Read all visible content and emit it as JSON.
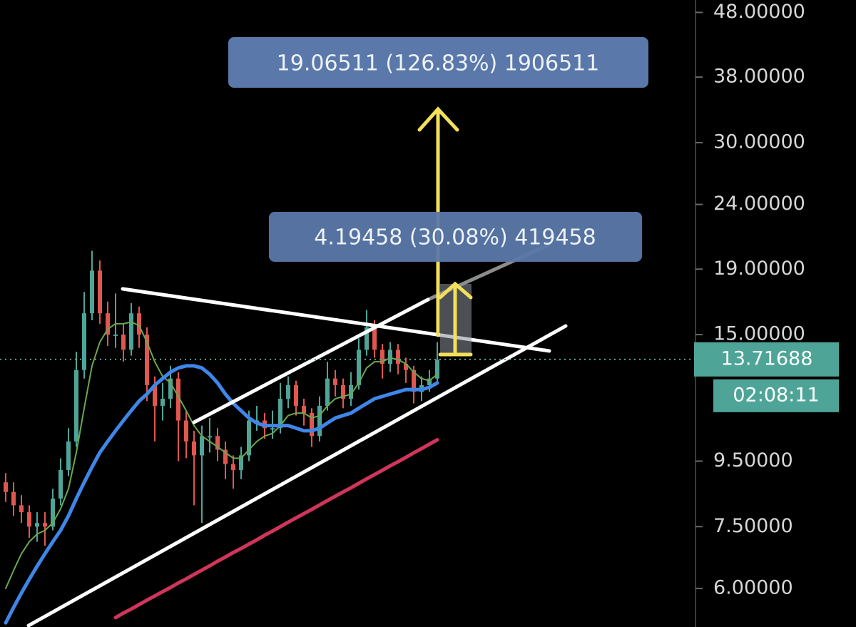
{
  "chart_data": {
    "type": "candlestick",
    "log_scale": true,
    "ylim": [
      5.22,
      50.2
    ],
    "yticks": [
      {
        "value": 6,
        "label": "6.00000"
      },
      {
        "value": 7.5,
        "label": "7.50000"
      },
      {
        "value": 9.5,
        "label": "9.50000"
      },
      {
        "value": 15,
        "label": "15.00000"
      },
      {
        "value": 19,
        "label": "19.00000"
      },
      {
        "value": 24,
        "label": "24.00000"
      },
      {
        "value": 30,
        "label": "30.00000"
      },
      {
        "value": 38,
        "label": "38.00000"
      },
      {
        "value": 48,
        "label": "48.00000"
      }
    ],
    "up_color": "#4ea597",
    "down_color": "#e0574f",
    "open": [
      8.8,
      8.5,
      8.1,
      7.9,
      7.5,
      7.6,
      7.5,
      8.3,
      9.2,
      10.2,
      13.2,
      16.2,
      18.9,
      16.2,
      15.0,
      15.0,
      14.2,
      16.2,
      15.0,
      12.5,
      11.6,
      11.9,
      12.8,
      11.0,
      10.2,
      9.7,
      10.4,
      10.4,
      9.9,
      9.4,
      9.2,
      9.7,
      11.0,
      11.0,
      10.7,
      10.7,
      11.9,
      12.5,
      11.6,
      11.3,
      10.4,
      11.6,
      12.8,
      12.5,
      11.9,
      12.5,
      14.2,
      15.4,
      14.2,
      13.5,
      14.2,
      13.5,
      13.2,
      12.2,
      12.5,
      12.8
    ],
    "high": [
      9.1,
      8.8,
      8.4,
      8.1,
      7.9,
      7.9,
      8.6,
      9.6,
      10.7,
      14.1,
      17.5,
      20.3,
      19.6,
      16.9,
      17.4,
      15.6,
      16.8,
      16.6,
      15.4,
      12.9,
      12.6,
      13.4,
      13.1,
      11.4,
      10.6,
      10.8,
      11.1,
      10.7,
      10.2,
      9.7,
      10.0,
      11.4,
      11.6,
      11.3,
      11.4,
      12.6,
      12.9,
      12.7,
      11.9,
      11.5,
      12.0,
      13.6,
      13.2,
      12.8,
      13.1,
      14.8,
      16.4,
      15.8,
      14.5,
      14.6,
      14.5,
      13.8,
      13.4,
      12.9,
      13.2,
      14.6
    ],
    "low": [
      8.2,
      7.8,
      7.6,
      7.2,
      7.1,
      7.0,
      7.4,
      8.1,
      9.0,
      10.0,
      12.8,
      15.8,
      15.6,
      14.4,
      14.3,
      13.6,
      13.9,
      14.3,
      11.8,
      10.2,
      11.0,
      11.5,
      9.5,
      9.6,
      8.1,
      7.6,
      9.8,
      9.5,
      8.9,
      8.6,
      8.9,
      9.5,
      10.6,
      10.3,
      10.3,
      10.5,
      11.5,
      11.2,
      10.8,
      10.0,
      10.2,
      11.4,
      12.0,
      11.5,
      11.6,
      12.3,
      13.9,
      13.8,
      12.8,
      13.1,
      13.0,
      12.6,
      11.7,
      11.8,
      12.2,
      12.6
    ],
    "close": [
      8.5,
      8.1,
      7.9,
      7.5,
      7.6,
      7.5,
      8.3,
      9.2,
      10.2,
      13.2,
      16.2,
      18.9,
      16.2,
      15.0,
      15.0,
      14.2,
      16.2,
      15.0,
      12.5,
      11.6,
      11.9,
      12.8,
      11.0,
      10.2,
      9.7,
      10.4,
      10.4,
      9.9,
      9.4,
      9.2,
      9.7,
      11.0,
      11.0,
      10.7,
      10.7,
      11.9,
      12.5,
      11.6,
      11.3,
      10.4,
      11.6,
      12.8,
      12.5,
      11.9,
      12.5,
      14.2,
      15.4,
      14.2,
      13.5,
      14.2,
      13.5,
      13.2,
      12.2,
      12.5,
      12.8,
      13.7
    ],
    "series": [
      {
        "color": "#6aa84f",
        "values": [
          6.0,
          6.4,
          6.8,
          7.1,
          7.3,
          7.4,
          7.6,
          8.0,
          8.6,
          9.8,
          11.5,
          13.4,
          14.6,
          15.3,
          15.6,
          15.6,
          15.7,
          15.5,
          14.6,
          13.6,
          12.9,
          12.6,
          12.0,
          11.4,
          10.8,
          10.4,
          10.2,
          10.0,
          9.8,
          9.6,
          9.6,
          9.9,
          10.2,
          10.4,
          10.5,
          10.8,
          11.2,
          11.3,
          11.3,
          11.1,
          11.2,
          11.6,
          11.9,
          12.0,
          12.1,
          12.6,
          13.3,
          13.6,
          13.6,
          13.8,
          13.7,
          13.5,
          13.1,
          12.8,
          12.7,
          13.0
        ]
      },
      {
        "color": "#3f86e8",
        "values": [
          5.3,
          5.6,
          5.9,
          6.2,
          6.5,
          6.8,
          7.1,
          7.4,
          7.8,
          8.3,
          8.8,
          9.3,
          9.8,
          10.2,
          10.6,
          11.0,
          11.4,
          11.8,
          12.1,
          12.5,
          12.8,
          13.1,
          13.3,
          13.4,
          13.4,
          13.3,
          13.0,
          12.6,
          12.1,
          11.7,
          11.4,
          11.1,
          10.9,
          10.8,
          10.8,
          10.8,
          10.8,
          10.7,
          10.6,
          10.6,
          10.7,
          10.9,
          11.1,
          11.2,
          11.3,
          11.5,
          11.7,
          11.9,
          12.0,
          12.1,
          12.2,
          12.3,
          12.3,
          12.3,
          12.4,
          12.6
        ]
      },
      {
        "color": "#d0355a",
        "values": [
          null,
          null,
          null,
          null,
          null,
          null,
          null,
          null,
          null,
          null,
          null,
          null,
          null,
          null,
          5.4,
          5.49,
          5.57,
          5.66,
          5.75,
          5.84,
          5.93,
          6.02,
          6.12,
          6.21,
          6.31,
          6.41,
          6.51,
          6.62,
          6.72,
          6.83,
          6.93,
          7.04,
          7.15,
          7.27,
          7.38,
          7.5,
          7.62,
          7.74,
          7.86,
          7.98,
          8.11,
          8.24,
          8.37,
          8.5,
          8.63,
          8.77,
          8.91,
          9.05,
          9.19,
          9.34,
          9.48,
          9.63,
          9.79,
          9.94,
          10.1,
          10.26
        ]
      }
    ],
    "last_price": {
      "value": 13.71688,
      "label": "13.71688"
    },
    "countdown": "02:08:11",
    "annotations": [
      "19.06511 (126.83%) 1906511",
      "4.19458 (30.08%) 419458"
    ]
  }
}
